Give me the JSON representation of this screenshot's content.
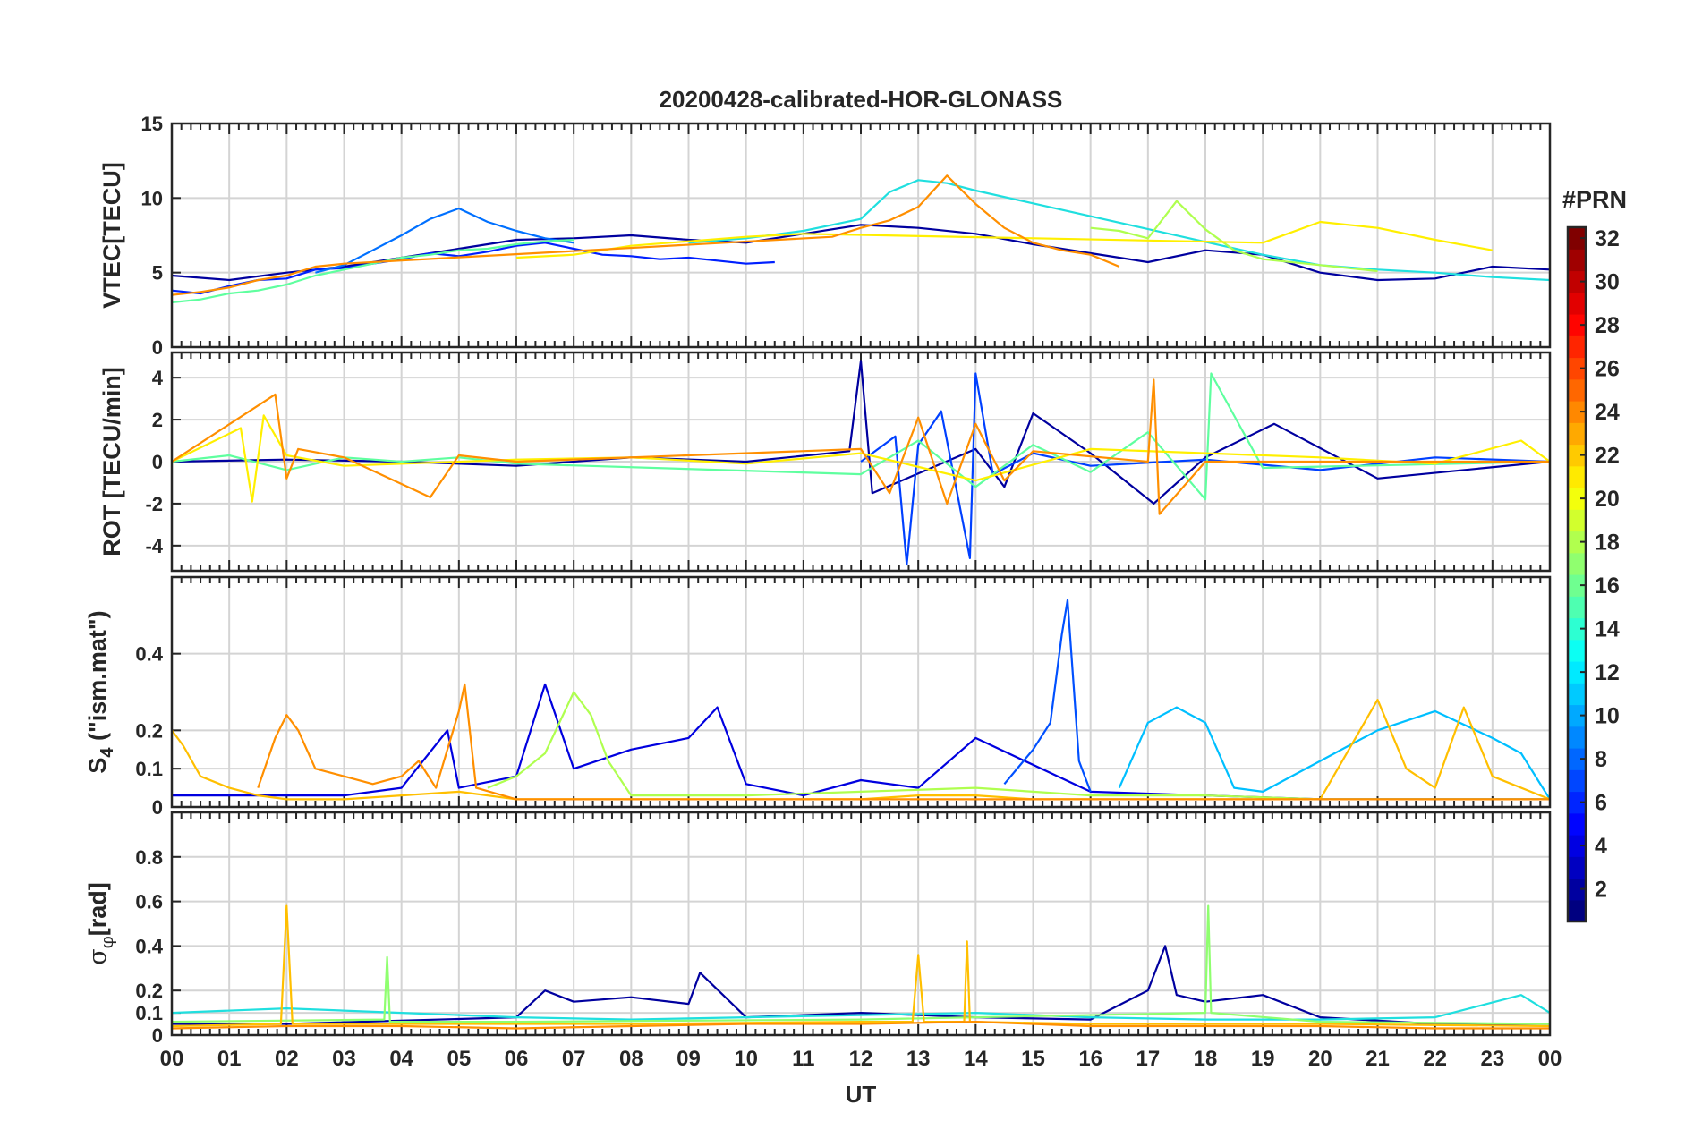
{
  "chart_data": {
    "type": "line",
    "title": "20200428-calibrated-HOR-GLONASS",
    "xlabel": "UT",
    "x_tick_labels": [
      "00",
      "01",
      "02",
      "03",
      "04",
      "05",
      "06",
      "07",
      "08",
      "09",
      "10",
      "11",
      "12",
      "13",
      "14",
      "15",
      "16",
      "17",
      "18",
      "19",
      "20",
      "21",
      "22",
      "23",
      "00"
    ],
    "xlim": [
      0,
      24
    ],
    "grid": true,
    "colormap": "jet",
    "colorbar": {
      "title": "#PRN",
      "range": [
        1,
        32
      ],
      "tick_labels": [
        "2",
        "4",
        "6",
        "8",
        "10",
        "12",
        "14",
        "16",
        "18",
        "20",
        "22",
        "24",
        "26",
        "28",
        "30",
        "32"
      ],
      "placement": "right"
    },
    "panels": [
      {
        "ylabel": "VTEC[TECU]",
        "ylim": [
          0,
          15
        ],
        "y_tick_labels": [
          "0",
          "5",
          "10",
          "15"
        ],
        "series": [
          {
            "prn": 2,
            "color": "#00009f",
            "x": [
              0,
              1,
              2,
              3,
              4,
              5,
              6,
              7,
              8,
              9,
              10,
              11,
              12,
              13,
              14,
              15,
              16,
              17,
              18,
              19,
              20,
              21,
              22,
              23,
              24
            ],
            "y": [
              4.8,
              4.5,
              5.0,
              5.4,
              6.0,
              6.6,
              7.2,
              7.3,
              7.5,
              7.2,
              7.0,
              7.6,
              8.2,
              8.0,
              7.6,
              6.9,
              6.3,
              5.7,
              6.5,
              6.2,
              5.0,
              4.5,
              4.6,
              5.4,
              5.2
            ]
          },
          {
            "prn": 5,
            "color": "#0020ff",
            "x": [
              0,
              0.5,
              1,
              1.5,
              2,
              2.5,
              3,
              3.5,
              4,
              4.5,
              5,
              5.5,
              6,
              6.5,
              7,
              7.5,
              8,
              8.5,
              9,
              9.5,
              10,
              10.5
            ],
            "y": [
              3.8,
              3.6,
              4.1,
              4.5,
              4.6,
              5.2,
              5.3,
              5.6,
              5.9,
              6.3,
              6.1,
              6.4,
              6.8,
              7.0,
              6.6,
              6.2,
              6.1,
              5.9,
              6.0,
              5.8,
              5.6,
              5.7
            ]
          },
          {
            "prn": 9,
            "color": "#0070ff",
            "x": [
              2.5,
              3,
              3.5,
              4,
              4.5,
              5,
              5.5,
              6,
              6.5,
              7
            ],
            "y": [
              5.0,
              5.5,
              6.5,
              7.5,
              8.6,
              9.3,
              8.4,
              7.8,
              7.3,
              7.0
            ]
          },
          {
            "prn": 13,
            "color": "#20dfdf",
            "x": [
              9,
              10,
              11,
              12,
              12.5,
              13,
              13.5,
              14,
              19,
              20,
              21,
              22,
              23,
              24
            ],
            "y": [
              7.0,
              7.3,
              7.8,
              8.6,
              10.4,
              11.2,
              11.0,
              10.5,
              6.2,
              5.5,
              5.2,
              5.0,
              4.7,
              4.5
            ]
          },
          {
            "prn": 16,
            "color": "#5fff9f",
            "x": [
              0,
              0.5,
              1,
              1.5,
              2,
              2.5,
              3,
              3.5,
              4,
              4.5,
              5,
              5.5,
              6,
              6.5,
              7
            ],
            "y": [
              3.0,
              3.2,
              3.6,
              3.8,
              4.2,
              4.8,
              5.2,
              5.6,
              6.0,
              6.2,
              6.5,
              6.6,
              6.9,
              7.1,
              7.2
            ]
          },
          {
            "prn": 18,
            "color": "#afff4f",
            "x": [
              16,
              16.5,
              17,
              17.5,
              18,
              18.5,
              19,
              20,
              21
            ],
            "y": [
              8.0,
              7.8,
              7.3,
              9.8,
              7.9,
              6.5,
              5.9,
              5.5,
              5.1
            ]
          },
          {
            "prn": 20,
            "color": "#ffef00",
            "x": [
              6,
              7,
              8,
              9,
              10,
              11,
              19,
              20,
              21,
              22,
              23
            ],
            "y": [
              6.0,
              6.2,
              6.8,
              7.1,
              7.4,
              7.6,
              7.0,
              8.4,
              8.0,
              7.2,
              6.5
            ]
          },
          {
            "prn": 23,
            "color": "#ff8f00",
            "x": [
              0,
              0.5,
              1,
              1.5,
              2,
              2.5,
              3,
              11.5,
              12,
              12.5,
              13,
              13.5,
              14,
              14.5,
              15,
              15.5,
              16,
              16.5
            ],
            "y": [
              3.5,
              3.7,
              4.0,
              4.5,
              4.8,
              5.4,
              5.6,
              7.4,
              8.0,
              8.5,
              9.4,
              11.5,
              9.6,
              8.0,
              7.0,
              6.5,
              6.2,
              5.4
            ]
          }
        ]
      },
      {
        "ylabel": "ROT [TECU/min]",
        "ylim": [
          -5.2,
          5.2
        ],
        "y_tick_labels": [
          "-4",
          "-2",
          "0",
          "2",
          "4"
        ],
        "series": [
          {
            "prn": 2,
            "color": "#00009f",
            "x": [
              0,
              2,
              4,
              6,
              8,
              10,
              11.8,
              12,
              12.2,
              14,
              14.5,
              15,
              16,
              17.1,
              18,
              19.2,
              21,
              24
            ],
            "y": [
              0,
              0.1,
              0,
              -0.2,
              0.2,
              0,
              0.5,
              4.8,
              -1.5,
              0.6,
              -1.2,
              2.3,
              0.4,
              -2.0,
              0.2,
              1.8,
              -0.8,
              0
            ]
          },
          {
            "prn": 6,
            "color": "#0040ff",
            "x": [
              12,
              12.6,
              12.8,
              13,
              13.4,
              13.9,
              14,
              14.3,
              15,
              16,
              18,
              20,
              22,
              24
            ],
            "y": [
              0,
              1.2,
              -4.9,
              0.8,
              2.4,
              -4.6,
              4.2,
              -0.6,
              0.4,
              -0.2,
              0.1,
              -0.4,
              0.2,
              0
            ]
          },
          {
            "prn": 16,
            "color": "#5fff9f",
            "x": [
              0,
              1,
              2,
              3,
              4,
              5,
              6,
              12,
              13,
              14,
              15,
              16,
              17,
              18,
              18.1,
              19,
              24
            ],
            "y": [
              0,
              0.3,
              -0.4,
              0.2,
              0,
              0.2,
              -0.1,
              -0.6,
              1.0,
              -1.2,
              0.8,
              -0.5,
              1.4,
              -1.8,
              4.2,
              -0.3,
              0
            ]
          },
          {
            "prn": 20,
            "color": "#ffef00",
            "x": [
              0,
              1.2,
              1.4,
              1.6,
              2,
              3,
              6,
              8,
              10,
              12,
              14,
              16,
              20,
              22,
              23.5,
              24
            ],
            "y": [
              0,
              1.6,
              -1.9,
              2.2,
              0.3,
              -0.2,
              0.1,
              0.2,
              -0.1,
              0.4,
              -0.9,
              0.6,
              0.2,
              -0.1,
              1.0,
              0
            ]
          },
          {
            "prn": 23,
            "color": "#ff8f00",
            "x": [
              0,
              1.8,
              2,
              2.2,
              3,
              4.5,
              5,
              6,
              12,
              12.5,
              13,
              13.5,
              14,
              14.5,
              15,
              17,
              17.1,
              17.2,
              18,
              24
            ],
            "y": [
              0,
              3.2,
              -0.8,
              0.6,
              0.2,
              -1.7,
              0.3,
              0,
              0.6,
              -1.5,
              2.1,
              -2.0,
              1.8,
              -0.9,
              0.5,
              0,
              3.9,
              -2.5,
              0,
              0
            ]
          }
        ]
      },
      {
        "ylabel": "S4 (\"ism.mat\")",
        "ylim": [
          0,
          0.6
        ],
        "y_tick_labels": [
          "0",
          "0.1",
          "0.2",
          "0.4"
        ],
        "series": [
          {
            "prn": 3,
            "color": "#0000df",
            "x": [
              0,
              3,
              4,
              4.8,
              5,
              6,
              6.5,
              7,
              8,
              9,
              9.5,
              10,
              11,
              12,
              13,
              14,
              16,
              18,
              20,
              22,
              24
            ],
            "y": [
              0.03,
              0.03,
              0.05,
              0.2,
              0.05,
              0.08,
              0.32,
              0.1,
              0.15,
              0.18,
              0.26,
              0.06,
              0.03,
              0.07,
              0.05,
              0.18,
              0.04,
              0.03,
              0.02,
              0.02,
              0.02
            ]
          },
          {
            "prn": 7,
            "color": "#0050ff",
            "x": [
              14.5,
              15,
              15.3,
              15.5,
              15.6,
              15.8,
              16
            ],
            "y": [
              0.06,
              0.15,
              0.22,
              0.45,
              0.54,
              0.12,
              0.04
            ]
          },
          {
            "prn": 11,
            "color": "#00bfff",
            "x": [
              16.5,
              17,
              17.5,
              18,
              18.5,
              19,
              20,
              21,
              22,
              23,
              23.5,
              24
            ],
            "y": [
              0.05,
              0.22,
              0.26,
              0.22,
              0.05,
              0.04,
              0.12,
              0.2,
              0.25,
              0.18,
              0.14,
              0.02
            ]
          },
          {
            "prn": 18,
            "color": "#afff4f",
            "x": [
              5.5,
              6,
              6.5,
              7,
              7.3,
              7.6,
              8,
              10,
              12,
              14,
              16,
              18,
              20,
              22,
              24
            ],
            "y": [
              0.05,
              0.08,
              0.14,
              0.3,
              0.24,
              0.12,
              0.03,
              0.03,
              0.04,
              0.05,
              0.03,
              0.03,
              0.02,
              0.02,
              0.02
            ]
          },
          {
            "prn": 22,
            "color": "#ffbf00",
            "x": [
              0,
              0.2,
              0.5,
              1,
              1.5,
              2,
              3,
              4,
              5,
              6,
              12,
              13,
              14,
              15,
              16,
              18,
              20,
              21,
              21.5,
              22,
              22.5,
              23,
              24
            ],
            "y": [
              0.2,
              0.16,
              0.08,
              0.05,
              0.03,
              0.02,
              0.02,
              0.03,
              0.04,
              0.02,
              0.02,
              0.03,
              0.03,
              0.02,
              0.02,
              0.02,
              0.02,
              0.28,
              0.1,
              0.05,
              0.26,
              0.08,
              0.02
            ]
          },
          {
            "prn": 23,
            "color": "#ff8f00",
            "x": [
              1.5,
              1.8,
              2,
              2.2,
              2.5,
              3,
              3.5,
              4,
              4.3,
              4.6,
              5,
              5.1,
              5.3,
              6,
              24
            ],
            "y": [
              0.05,
              0.18,
              0.24,
              0.2,
              0.1,
              0.08,
              0.06,
              0.08,
              0.12,
              0.05,
              0.25,
              0.32,
              0.05,
              0.02,
              0.02
            ]
          }
        ]
      },
      {
        "ylabel": "σφ[rad]",
        "ylim": [
          0,
          1
        ],
        "y_tick_labels": [
          "0",
          "0.1",
          "0.2",
          "0.4",
          "0.6",
          "0.8"
        ],
        "series": [
          {
            "prn": 2,
            "color": "#00009f",
            "x": [
              0,
              2,
              6,
              6.5,
              7,
              8,
              9,
              9.2,
              10,
              12,
              14,
              16,
              17,
              17.3,
              17.5,
              18,
              19,
              20,
              22,
              24
            ],
            "y": [
              0.05,
              0.05,
              0.08,
              0.2,
              0.15,
              0.17,
              0.14,
              0.28,
              0.08,
              0.1,
              0.08,
              0.07,
              0.2,
              0.4,
              0.18,
              0.15,
              0.18,
              0.08,
              0.05,
              0.05
            ]
          },
          {
            "prn": 13,
            "color": "#20dfdf",
            "x": [
              0,
              2,
              4,
              6,
              8,
              10,
              12,
              14,
              16,
              18,
              20,
              22,
              23.5,
              24
            ],
            "y": [
              0.1,
              0.12,
              0.1,
              0.08,
              0.07,
              0.08,
              0.09,
              0.1,
              0.08,
              0.07,
              0.07,
              0.08,
              0.18,
              0.1
            ]
          },
          {
            "prn": 17,
            "color": "#8fff6f",
            "x": [
              0,
              3.7,
              3.75,
              3.8,
              6,
              12,
              14,
              18,
              18.05,
              18.1,
              20,
              24
            ],
            "y": [
              0.06,
              0.07,
              0.35,
              0.06,
              0.06,
              0.07,
              0.08,
              0.1,
              0.58,
              0.1,
              0.06,
              0.05
            ]
          },
          {
            "prn": 22,
            "color": "#ffbf00",
            "x": [
              0,
              1.9,
              2,
              2.1,
              4,
              8,
              12,
              12.9,
              13,
              13.1,
              13.8,
              13.85,
              13.9,
              16,
              20,
              24
            ],
            "y": [
              0.04,
              0.05,
              0.58,
              0.05,
              0.05,
              0.05,
              0.06,
              0.06,
              0.36,
              0.06,
              0.06,
              0.42,
              0.06,
              0.05,
              0.05,
              0.04
            ]
          },
          {
            "prn": 23,
            "color": "#ff8f00",
            "x": [
              0,
              2,
              4,
              6,
              8,
              10,
              12,
              14,
              16,
              18,
              20,
              22,
              24
            ],
            "y": [
              0.03,
              0.04,
              0.04,
              0.03,
              0.04,
              0.05,
              0.05,
              0.06,
              0.04,
              0.04,
              0.04,
              0.03,
              0.03
            ]
          }
        ]
      }
    ]
  }
}
